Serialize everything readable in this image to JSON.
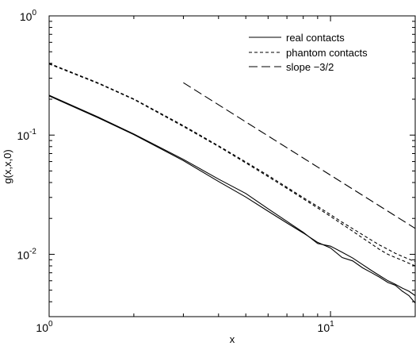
{
  "chart_data": {
    "type": "line",
    "title": "",
    "xlabel": "x",
    "ylabel": "g(x,x,0)",
    "xscale": "log",
    "yscale": "log",
    "xlim": [
      1,
      20
    ],
    "ylim": [
      0.003,
      1
    ],
    "grid": false,
    "legend_position": "top-right",
    "x_ticks": [
      {
        "value": 1,
        "base": "10",
        "exp": "0"
      },
      {
        "value": 10,
        "base": "10",
        "exp": "1"
      }
    ],
    "y_ticks": [
      {
        "value": 0.01,
        "base": "10",
        "exp": "-2"
      },
      {
        "value": 0.1,
        "base": "10",
        "exp": "-1"
      },
      {
        "value": 1,
        "base": "10",
        "exp": "0"
      }
    ],
    "series": [
      {
        "name": "real contacts",
        "dash": "solid",
        "color": "#000000",
        "show_in_legend": true,
        "x": [
          1,
          1.5,
          2,
          3,
          4,
          5,
          6,
          7,
          8,
          9,
          10,
          11,
          12,
          13,
          14,
          15,
          16,
          17,
          18,
          19,
          20
        ],
        "y": [
          0.213,
          0.139,
          0.101,
          0.0611,
          0.0408,
          0.0302,
          0.023,
          0.0183,
          0.0151,
          0.0126,
          0.0113,
          0.0094,
          0.0088,
          0.0077,
          0.007,
          0.0064,
          0.0058,
          0.0055,
          0.0049,
          0.0045,
          0.0039
        ]
      },
      {
        "name": "",
        "dash": "solid",
        "color": "#000000",
        "show_in_legend": false,
        "x": [
          1,
          1.5,
          2,
          3,
          4,
          5,
          6,
          7,
          8,
          9,
          10,
          11,
          12,
          13,
          14,
          15,
          16,
          17,
          18,
          19,
          20
        ],
        "y": [
          0.216,
          0.141,
          0.102,
          0.0626,
          0.0427,
          0.0324,
          0.0241,
          0.0189,
          0.0153,
          0.0123,
          0.0117,
          0.0104,
          0.0093,
          0.0082,
          0.0073,
          0.0066,
          0.006,
          0.0056,
          0.0052,
          0.0049,
          0.0045
        ]
      },
      {
        "name": "phantom contacts",
        "dash": "short",
        "color": "#000000",
        "show_in_legend": true,
        "x": [
          1,
          1.5,
          2,
          3,
          4,
          5,
          6,
          7,
          8,
          9,
          10,
          11,
          12,
          13,
          14,
          15,
          16,
          17,
          18,
          19,
          20
        ],
        "y": [
          0.395,
          0.27,
          0.199,
          0.118,
          0.0802,
          0.0584,
          0.0449,
          0.0357,
          0.0292,
          0.0245,
          0.0208,
          0.0179,
          0.0156,
          0.0137,
          0.0122,
          0.0109,
          0.01,
          0.0094,
          0.0089,
          0.0084,
          0.008
        ]
      },
      {
        "name": "",
        "dash": "short",
        "color": "#000000",
        "show_in_legend": false,
        "x": [
          1,
          1.5,
          2,
          3,
          4,
          5,
          6,
          7,
          8,
          9,
          10,
          11,
          12,
          13,
          14,
          15,
          16,
          17,
          18,
          19,
          20
        ],
        "y": [
          0.4,
          0.273,
          0.201,
          0.12,
          0.0813,
          0.0595,
          0.0459,
          0.0365,
          0.0299,
          0.0252,
          0.0215,
          0.0186,
          0.0164,
          0.0146,
          0.0131,
          0.0119,
          0.011,
          0.0102,
          0.0096,
          0.0091,
          0.0087
        ]
      },
      {
        "name": "slope −3/2",
        "dash": "long",
        "color": "#000000",
        "show_in_legend": true,
        "x": [
          3,
          20
        ],
        "y": [
          0.275,
          0.0165
        ]
      }
    ]
  }
}
